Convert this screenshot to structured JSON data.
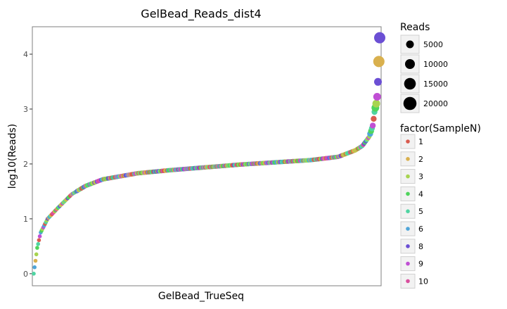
{
  "chart_data": {
    "type": "scatter",
    "title": "GelBead_Reads_dist4",
    "xlabel": "GelBead_TrueSeq",
    "ylabel": "log10(Reads)",
    "ylim": [
      -0.22,
      4.5
    ],
    "yticks": [
      "0",
      "1",
      "2",
      "3",
      "4"
    ],
    "grid": false,
    "size_legend": {
      "title": "Reads",
      "entries": [
        {
          "label": "5000",
          "value": 5000
        },
        {
          "label": "10000",
          "value": 10000
        },
        {
          "label": "15000",
          "value": 15000
        },
        {
          "label": "20000",
          "value": 20000
        }
      ]
    },
    "color_legend": {
      "title": "factor(SampleN)",
      "entries": [
        {
          "label": "1",
          "color": "#d95b4e"
        },
        {
          "label": "2",
          "color": "#d9b04e"
        },
        {
          "label": "3",
          "color": "#a7d44f"
        },
        {
          "label": "4",
          "color": "#4fd45c"
        },
        {
          "label": "5",
          "color": "#4fd4a2"
        },
        {
          "label": "6",
          "color": "#4fa5d9"
        },
        {
          "label": "8",
          "color": "#6b4fd4"
        },
        {
          "label": "9",
          "color": "#c04fd4"
        },
        {
          "label": "10",
          "color": "#d94f9e"
        }
      ]
    },
    "curve": {
      "points": 400,
      "knots": [
        [
          0.0,
          0.0
        ],
        [
          0.01,
          0.47
        ],
        [
          0.02,
          0.75
        ],
        [
          0.04,
          1.0
        ],
        [
          0.07,
          1.2
        ],
        [
          0.11,
          1.45
        ],
        [
          0.15,
          1.6
        ],
        [
          0.2,
          1.72
        ],
        [
          0.3,
          1.83
        ],
        [
          0.4,
          1.89
        ],
        [
          0.5,
          1.94
        ],
        [
          0.6,
          1.99
        ],
        [
          0.7,
          2.03
        ],
        [
          0.8,
          2.07
        ],
        [
          0.88,
          2.13
        ],
        [
          0.93,
          2.25
        ],
        [
          0.95,
          2.33
        ],
        [
          0.97,
          2.5
        ],
        [
          0.98,
          2.7
        ],
        [
          0.985,
          2.95
        ],
        [
          0.99,
          3.1
        ],
        [
          0.993,
          3.25
        ],
        [
          0.996,
          3.62
        ],
        [
          0.998,
          3.95
        ],
        [
          1.0,
          4.3
        ]
      ]
    }
  }
}
